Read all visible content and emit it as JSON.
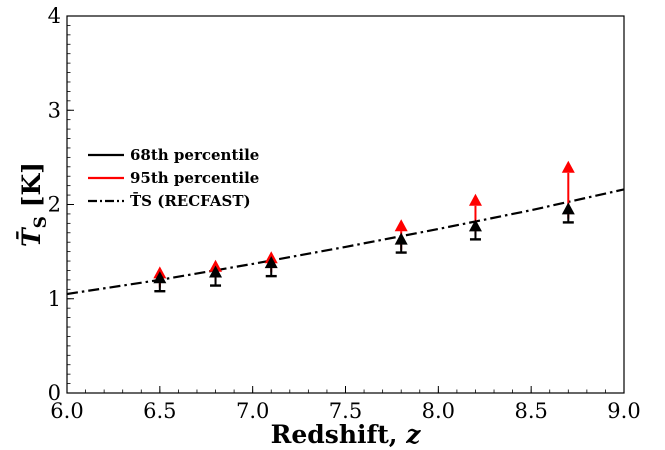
{
  "chart_data": {
    "type": "scatter",
    "title": "",
    "xlabel": "Redshift, z",
    "ylabel": "T̄S [K]",
    "xlim": [
      6.0,
      9.0
    ],
    "ylim": [
      0,
      4
    ],
    "x_ticks": [
      "6.0",
      "6.5",
      "7.0",
      "7.5",
      "8.0",
      "8.5",
      "9.0"
    ],
    "y_ticks": [
      "0",
      "1",
      "2",
      "3",
      "4"
    ],
    "grid": false,
    "legend_position": "upper-left",
    "legend": [
      {
        "label": "68th percentile",
        "color": "#000000",
        "style": "solid"
      },
      {
        "label": "95th percentile",
        "color": "#ff0000",
        "style": "solid"
      },
      {
        "label": "T̄S (RECFAST)",
        "color": "#000000",
        "style": "dashdot"
      }
    ],
    "series": [
      {
        "name": "68th percentile",
        "type": "lower-limit",
        "color": "#000000",
        "points": [
          {
            "x": 6.5,
            "y": 1.08
          },
          {
            "x": 6.8,
            "y": 1.14
          },
          {
            "x": 7.1,
            "y": 1.24
          },
          {
            "x": 7.8,
            "y": 1.49
          },
          {
            "x": 8.2,
            "y": 1.63
          },
          {
            "x": 8.7,
            "y": 1.81
          }
        ]
      },
      {
        "name": "95th percentile",
        "type": "lower-limit",
        "color": "#ff0000",
        "points": [
          {
            "x": 6.5,
            "y": 1.12,
            "top": 1.28
          },
          {
            "x": 6.8,
            "y": 1.18,
            "top": 1.35
          },
          {
            "x": 7.1,
            "y": 1.28,
            "top": 1.44
          },
          {
            "x": 7.8,
            "y": 1.52,
            "top": 1.78
          },
          {
            "x": 8.2,
            "y": 1.67,
            "top": 2.05
          },
          {
            "x": 8.7,
            "y": 1.85,
            "top": 2.4
          }
        ]
      },
      {
        "name": "T̄S (RECFAST)",
        "type": "line",
        "color": "#000000",
        "style": "dashdot",
        "x": [
          6.0,
          6.5,
          7.0,
          7.5,
          8.0,
          8.5,
          9.0
        ],
        "y": [
          1.05,
          1.2,
          1.37,
          1.55,
          1.74,
          1.94,
          2.16
        ]
      }
    ]
  }
}
